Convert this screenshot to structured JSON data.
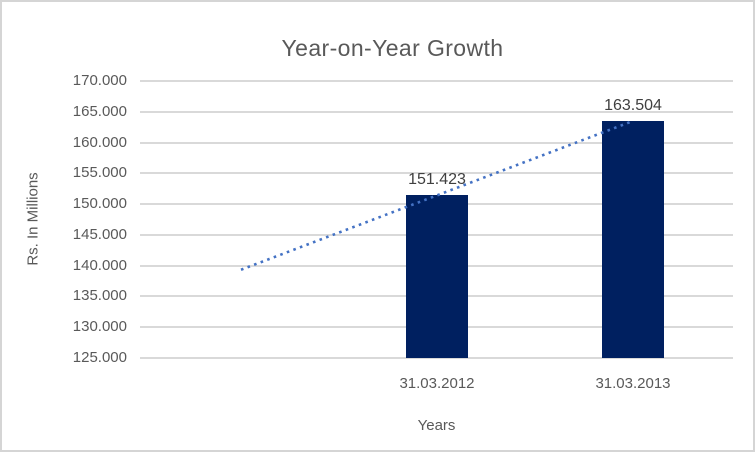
{
  "chart": {
    "title": "Year-on-Year Growth",
    "y_axis_title": "Rs. In Millions",
    "x_axis_title": "Years"
  },
  "chart_data": {
    "type": "bar",
    "title": "Year-on-Year Growth",
    "xlabel": "Years",
    "ylabel": "Rs. In Millions",
    "categories": [
      "31.03.2012",
      "31.03.2013"
    ],
    "values": [
      151.423,
      163.504
    ],
    "data_labels": [
      "151.423",
      "163.504"
    ],
    "ylim": [
      125,
      170
    ],
    "ytick_step": 5,
    "ytick_labels": [
      "125.000",
      "130.000",
      "135.000",
      "140.000",
      "145.000",
      "150.000",
      "155.000",
      "160.000",
      "165.000",
      "170.000"
    ],
    "grid": "horizontal",
    "legend": "none",
    "trendline": {
      "type": "linear",
      "style": "dotted",
      "points": [
        {
          "category_index": -1,
          "value": 139.34
        },
        {
          "category_index": 1,
          "value": 163.504
        }
      ]
    },
    "colors": {
      "bar": "#002060",
      "trendline": "#4472C4",
      "gridline": "#d9d9d9",
      "axis_text": "#595959",
      "data_label_text": "#404040",
      "frame_border": "#d5d5d5",
      "background": "#ffffff"
    }
  }
}
